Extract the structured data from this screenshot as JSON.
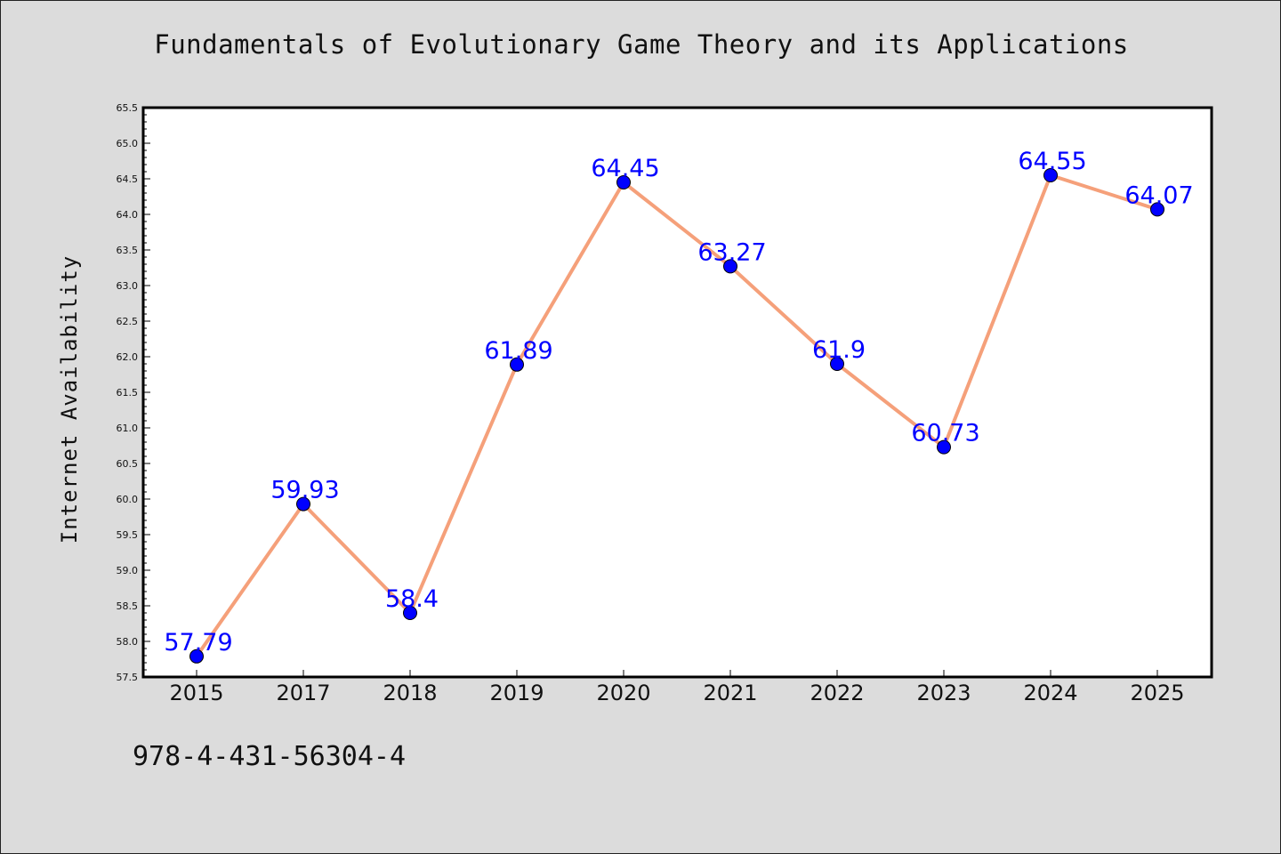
{
  "page": {
    "isbn": "978-4-431-56304-4"
  },
  "chart_data": {
    "type": "line",
    "title": "Fundamentals of Evolutionary Game Theory and its Applications",
    "xlabel": "",
    "ylabel": "Internet Availability",
    "categories": [
      "2015",
      "2017",
      "2018",
      "2019",
      "2020",
      "2021",
      "2022",
      "2023",
      "2024",
      "2025"
    ],
    "series": [
      {
        "values": [
          57.79,
          59.93,
          58.4,
          61.89,
          64.45,
          63.27,
          61.9,
          60.73,
          64.55,
          64.07
        ]
      }
    ],
    "data_labels": [
      "57.79",
      "59.93",
      "58.4",
      "61.89",
      "64.45",
      "63.27",
      "61.9",
      "60.73",
      "64.55",
      "64.07"
    ],
    "ylim": [
      57.5,
      65.5
    ],
    "yticks": [
      "57.5",
      "58.0",
      "58.5",
      "59.0",
      "59.5",
      "60.0",
      "60.5",
      "61.0",
      "61.5",
      "62.0",
      "62.5",
      "63.0",
      "63.5",
      "64.0",
      "64.5",
      "65.0",
      "65.5"
    ],
    "grid": false,
    "legend": "none",
    "colors": {
      "line": "#f5a07a",
      "marker": "#0000ff",
      "data_label": "#0000ff",
      "plot_background": "#ffffff",
      "page_background": "#dcdcdc"
    }
  }
}
